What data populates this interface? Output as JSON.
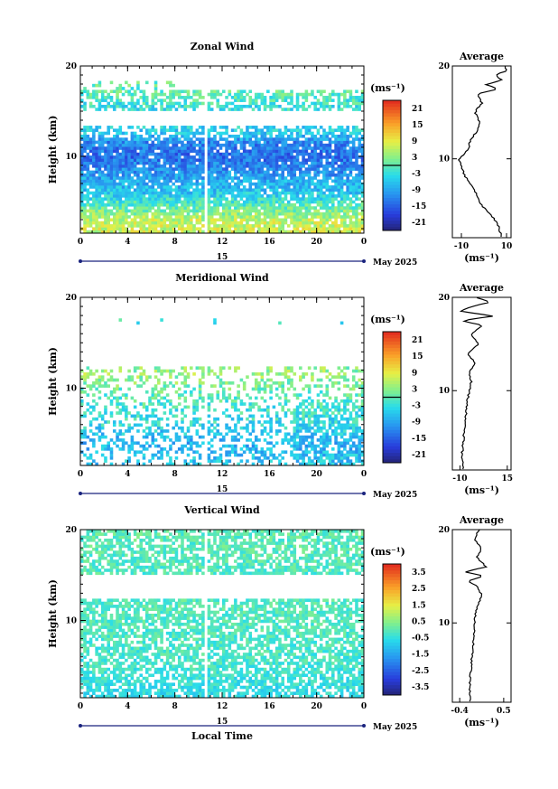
{
  "chart_data": [
    {
      "type": "heatmap",
      "title": "Zonal Wind",
      "xlabel": "",
      "ylabel": "Height (km)",
      "x_ticks": [
        "0",
        "4",
        "8",
        "12",
        "16",
        "20",
        "0"
      ],
      "y_ticks": [
        "10",
        "20"
      ],
      "xlim": [
        0,
        24
      ],
      "ylim": [
        1.5,
        20
      ],
      "date_marker": "15",
      "date_label": "May 2025",
      "colorbar": {
        "unit_label": "(ms⁻¹)",
        "ticks": [
          "21",
          "15",
          "9",
          "3",
          "-3",
          "-9",
          "-15",
          "-21"
        ],
        "range": [
          -24,
          24
        ],
        "zero_line": true
      },
      "field_profile": [
        {
          "h": 1.8,
          "v": 7
        },
        {
          "h": 3,
          "v": 6
        },
        {
          "h": 4.5,
          "v": 0
        },
        {
          "h": 6,
          "v": -6
        },
        {
          "h": 8,
          "v": -10
        },
        {
          "h": 10,
          "v": -14
        },
        {
          "h": 11.5,
          "v": -12
        },
        {
          "h": 12.5,
          "v": -6
        },
        {
          "h": 13,
          "v": -5
        },
        {
          "h": 15.5,
          "v": -3
        },
        {
          "h": 17,
          "v": 0
        }
      ],
      "data_gaps_km": [
        [
          13.3,
          15.2
        ],
        [
          17.3,
          20
        ]
      ],
      "average_profile": {
        "title": "Average",
        "xlabel": "(ms⁻¹)",
        "x_ticks": [
          "-10",
          "10"
        ],
        "xlim": [
          -14,
          12
        ],
        "y_ticks": [
          "10",
          "20"
        ],
        "points": [
          {
            "h": 1.6,
            "v": 8
          },
          {
            "h": 2.2,
            "v": 7
          },
          {
            "h": 3,
            "v": 6
          },
          {
            "h": 4,
            "v": 3
          },
          {
            "h": 5,
            "v": -1
          },
          {
            "h": 6,
            "v": -3
          },
          {
            "h": 7,
            "v": -5
          },
          {
            "h": 8,
            "v": -8
          },
          {
            "h": 9,
            "v": -10
          },
          {
            "h": 10,
            "v": -11
          },
          {
            "h": 11,
            "v": -7
          },
          {
            "h": 12,
            "v": -6
          },
          {
            "h": 13,
            "v": -3
          },
          {
            "h": 14,
            "v": -2
          },
          {
            "h": 15,
            "v": -4
          },
          {
            "h": 16,
            "v": -1
          },
          {
            "h": 17,
            "v": -3
          },
          {
            "h": 17.5,
            "v": 6
          },
          {
            "h": 18,
            "v": 1
          },
          {
            "h": 18.5,
            "v": 8
          },
          {
            "h": 19,
            "v": 5
          },
          {
            "h": 19.5,
            "v": 10
          },
          {
            "h": 20,
            "v": 9
          }
        ]
      }
    },
    {
      "type": "heatmap",
      "title": "Meridional Wind",
      "xlabel": "",
      "ylabel": "Height (km)",
      "x_ticks": [
        "0",
        "4",
        "8",
        "12",
        "16",
        "20",
        "0"
      ],
      "y_ticks": [
        "10",
        "20"
      ],
      "xlim": [
        0,
        24
      ],
      "ylim": [
        1.5,
        20
      ],
      "date_marker": "15",
      "date_label": "May 2025",
      "colorbar": {
        "unit_label": "(ms⁻¹)",
        "ticks": [
          "21",
          "15",
          "9",
          "3",
          "-3",
          "-9",
          "-15",
          "-21"
        ],
        "range": [
          -24,
          24
        ],
        "zero_line": true
      },
      "field_profile": [
        {
          "h": 2,
          "v": -6
        },
        {
          "h": 4,
          "v": -8
        },
        {
          "h": 6,
          "v": -4
        },
        {
          "h": 8,
          "v": -2
        },
        {
          "h": 10,
          "v": 1
        },
        {
          "h": 11.5,
          "v": 4
        },
        {
          "h": 13,
          "v": 2
        },
        {
          "h": 17,
          "v": -3
        }
      ],
      "data_gaps_km": [
        [
          12.5,
          20
        ]
      ],
      "average_profile": {
        "title": "Average",
        "xlabel": "(ms⁻¹)",
        "x_ticks": [
          "-10",
          "15"
        ],
        "xlim": [
          -14,
          17
        ],
        "y_ticks": [
          "10",
          "20"
        ],
        "points": [
          {
            "h": 1.6,
            "v": -8
          },
          {
            "h": 3,
            "v": -9
          },
          {
            "h": 5,
            "v": -8
          },
          {
            "h": 7,
            "v": -7
          },
          {
            "h": 9,
            "v": -6
          },
          {
            "h": 10,
            "v": -5
          },
          {
            "h": 11,
            "v": -4
          },
          {
            "h": 12,
            "v": -5
          },
          {
            "h": 13,
            "v": -2
          },
          {
            "h": 14,
            "v": -6
          },
          {
            "h": 15,
            "v": 0
          },
          {
            "h": 16,
            "v": -4
          },
          {
            "h": 17,
            "v": 2
          },
          {
            "h": 17.5,
            "v": -9
          },
          {
            "h": 18,
            "v": 8
          },
          {
            "h": 18.5,
            "v": -10
          },
          {
            "h": 19,
            "v": -4
          },
          {
            "h": 19.5,
            "v": 6
          },
          {
            "h": 20,
            "v": -2
          }
        ]
      }
    },
    {
      "type": "heatmap",
      "title": "Vertical Wind",
      "xlabel": "Local Time",
      "ylabel": "Height (km)",
      "x_ticks": [
        "0",
        "4",
        "8",
        "12",
        "16",
        "20",
        "0"
      ],
      "y_ticks": [
        "10",
        "20"
      ],
      "xlim": [
        0,
        24
      ],
      "ylim": [
        1.5,
        20
      ],
      "date_marker": "15",
      "date_label": "May 2025",
      "colorbar": {
        "unit_label": "(ms⁻¹)",
        "ticks": [
          "3.5",
          "2.5",
          "1.5",
          "0.5",
          "-0.5",
          "-1.5",
          "-2.5",
          "-3.5"
        ],
        "range": [
          -4,
          4
        ],
        "zero_line": false
      },
      "field_profile": [
        {
          "h": 2,
          "v": -0.6
        },
        {
          "h": 5,
          "v": -0.3
        },
        {
          "h": 8,
          "v": -0.2
        },
        {
          "h": 11,
          "v": -0.1
        },
        {
          "h": 14,
          "v": -0.2
        },
        {
          "h": 17,
          "v": -0.1
        },
        {
          "h": 20,
          "v": 0
        }
      ],
      "data_gaps_km": [
        [
          12.5,
          15.2
        ]
      ],
      "average_profile": {
        "title": "Average",
        "xlabel": "(ms⁻¹)",
        "x_ticks": [
          "-0.4",
          "0.5"
        ],
        "xlim": [
          -0.55,
          0.65
        ],
        "y_ticks": [
          "10",
          "20"
        ],
        "points": [
          {
            "h": 1.6,
            "v": -0.18
          },
          {
            "h": 3,
            "v": -0.2
          },
          {
            "h": 5,
            "v": -0.17
          },
          {
            "h": 7,
            "v": -0.14
          },
          {
            "h": 9,
            "v": -0.1
          },
          {
            "h": 11,
            "v": -0.08
          },
          {
            "h": 12,
            "v": -0.02
          },
          {
            "h": 13,
            "v": 0.05
          },
          {
            "h": 14,
            "v": -0.05
          },
          {
            "h": 14.5,
            "v": -0.25
          },
          {
            "h": 15,
            "v": 0.1
          },
          {
            "h": 15.5,
            "v": -0.3
          },
          {
            "h": 16,
            "v": 0.15
          },
          {
            "h": 17,
            "v": -0.05
          },
          {
            "h": 18,
            "v": 0.05
          },
          {
            "h": 19,
            "v": -0.1
          },
          {
            "h": 20,
            "v": 0
          }
        ]
      }
    }
  ]
}
